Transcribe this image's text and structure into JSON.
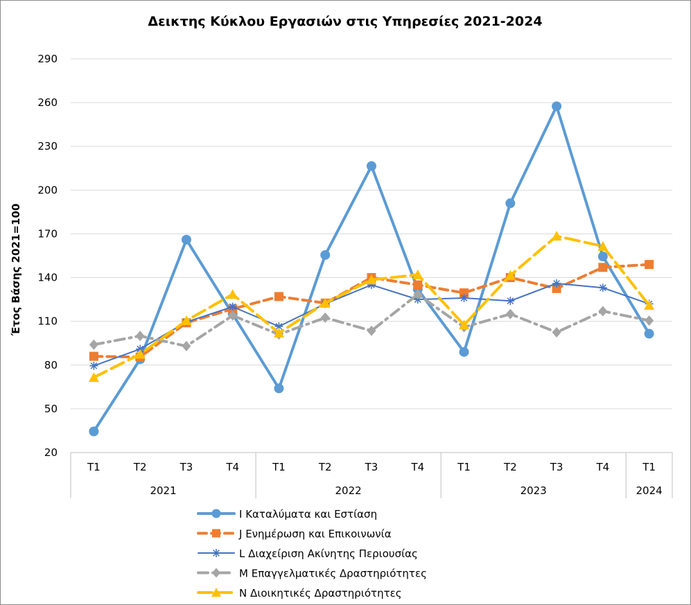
{
  "chart_data": {
    "type": "line",
    "title": "Δεικτης Κύκλου Εργασιών στις Υπηρεσίες 2021-2024",
    "ylabel": "Έτος Βάσης 2021=100",
    "xlabel": "",
    "ylim": [
      20,
      290
    ],
    "yticks": [
      20,
      50,
      80,
      110,
      140,
      170,
      200,
      230,
      260,
      290
    ],
    "grid": "horizontal",
    "legend_position": "bottom",
    "categories": [
      "Τ1",
      "Τ2",
      "Τ3",
      "Τ4",
      "Τ1",
      "Τ2",
      "Τ3",
      "Τ4",
      "Τ1",
      "Τ2",
      "Τ3",
      "Τ4",
      "Τ1"
    ],
    "years": [
      {
        "label": "2021",
        "count": 4
      },
      {
        "label": "2022",
        "count": 4
      },
      {
        "label": "2023",
        "count": 4
      },
      {
        "label": "2024",
        "count": 1
      }
    ],
    "series": [
      {
        "name": "I Καταλύματα και Εστίαση",
        "color": "#5b9bd5",
        "style": "solid-thick",
        "marker": "circle",
        "values": [
          34.5,
          84,
          166,
          115,
          64,
          155.5,
          216.5,
          132,
          89,
          191,
          257.5,
          154.5,
          101.5
        ]
      },
      {
        "name": "J Ενημέρωση και Επικοινωνία",
        "color": "#ed7d31",
        "style": "dashed",
        "marker": "square",
        "values": [
          86,
          85.5,
          109,
          118.5,
          127,
          122.5,
          140,
          135,
          129.5,
          140,
          132.5,
          147,
          149
        ]
      },
      {
        "name": "L Διαχείριση Ακίνητης Περιουσίας",
        "color": "#4472c4",
        "style": "solid-thin",
        "marker": "star",
        "values": [
          79.5,
          91,
          109.5,
          120,
          106.5,
          122,
          135,
          125,
          126,
          124,
          136,
          133,
          122
        ]
      },
      {
        "name": "M Επαγγελματικές Δραστηριότητες",
        "color": "#a5a5a5",
        "style": "dashdot",
        "marker": "diamond",
        "values": [
          94,
          100,
          93,
          114,
          101,
          112.5,
          103.5,
          128.5,
          106,
          115,
          102.5,
          117,
          110.5
        ]
      },
      {
        "name": "N Διοικητικές Δραστηριότητες",
        "color": "#ffc000",
        "style": "longdash",
        "marker": "triangle",
        "values": [
          71.5,
          87.5,
          110.5,
          128.5,
          102,
          122.5,
          138.5,
          142,
          107.5,
          141.5,
          168.5,
          161.5,
          121
        ]
      }
    ]
  }
}
